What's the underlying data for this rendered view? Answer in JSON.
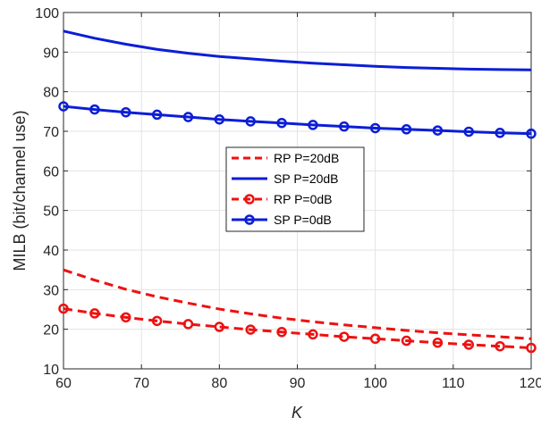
{
  "chart_data": {
    "type": "line",
    "xlabel": "K",
    "ylabel": "MILB (bit/channel use)",
    "xlim": [
      60,
      120
    ],
    "ylim": [
      10,
      100
    ],
    "xticks": [
      60,
      70,
      80,
      90,
      100,
      110,
      120
    ],
    "yticks": [
      10,
      20,
      30,
      40,
      50,
      60,
      70,
      80,
      90,
      100
    ],
    "grid": true,
    "legend_position": "center",
    "series": [
      {
        "name": "RP P=20dB",
        "color": "#ee1111",
        "line_style": "dashed",
        "marker": "none",
        "x": [
          60,
          64,
          68,
          72,
          76,
          80,
          84,
          88,
          92,
          96,
          100,
          104,
          108,
          112,
          116,
          120
        ],
        "values": [
          35.0,
          32.4,
          30.1,
          28.2,
          26.6,
          25.1,
          23.9,
          22.8,
          21.9,
          21.1,
          20.4,
          19.7,
          19.1,
          18.6,
          18.1,
          17.6
        ]
      },
      {
        "name": "SP P=20dB",
        "color": "#0b1ed6",
        "line_style": "solid",
        "marker": "none",
        "x": [
          60,
          64,
          68,
          72,
          76,
          80,
          84,
          88,
          92,
          96,
          100,
          104,
          108,
          112,
          116,
          120
        ],
        "values": [
          95.3,
          93.5,
          92.0,
          90.7,
          89.7,
          88.9,
          88.3,
          87.7,
          87.2,
          86.8,
          86.4,
          86.1,
          85.9,
          85.7,
          85.6,
          85.5
        ]
      },
      {
        "name": "RP P=0dB",
        "color": "#ee1111",
        "line_style": "dashed",
        "marker": "circle",
        "x": [
          60,
          64,
          68,
          72,
          76,
          80,
          84,
          88,
          92,
          96,
          100,
          104,
          108,
          112,
          116,
          120
        ],
        "values": [
          25.2,
          24.0,
          23.0,
          22.1,
          21.3,
          20.6,
          19.9,
          19.3,
          18.7,
          18.1,
          17.6,
          17.1,
          16.6,
          16.1,
          15.7,
          15.3
        ]
      },
      {
        "name": "SP P=0dB",
        "color": "#0b1ed6",
        "line_style": "solid",
        "marker": "circle",
        "x": [
          60,
          64,
          68,
          72,
          76,
          80,
          84,
          88,
          92,
          96,
          100,
          104,
          108,
          112,
          116,
          120
        ],
        "values": [
          76.3,
          75.5,
          74.8,
          74.2,
          73.6,
          73.0,
          72.5,
          72.1,
          71.6,
          71.2,
          70.8,
          70.5,
          70.2,
          69.9,
          69.6,
          69.4
        ]
      }
    ]
  }
}
